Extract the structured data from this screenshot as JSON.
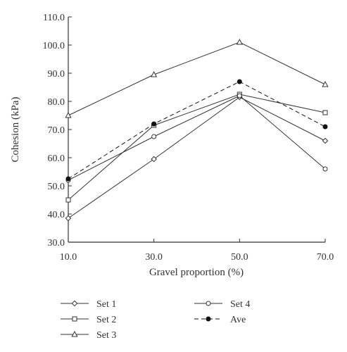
{
  "chart_data": {
    "type": "line",
    "x": [
      10.0,
      30.0,
      50.0,
      70.0
    ],
    "xlabel": "Gravel proportion (%)",
    "ylabel": "Cohesion (kPa)",
    "xlim": [
      10.0,
      70.0
    ],
    "ylim": [
      30.0,
      110.0
    ],
    "xticks": [
      "10.0",
      "30.0",
      "50.0",
      "70.0"
    ],
    "yticks": [
      "30.0",
      "40.0",
      "50.0",
      "60.0",
      "70.0",
      "80.0",
      "90.0",
      "100.0",
      "110.0"
    ],
    "grid": false,
    "legend_placement": "bottom",
    "series": [
      {
        "name": "Set 1",
        "values": [
          38.5,
          59.5,
          81.5,
          66.0
        ],
        "marker": "diamond-open",
        "dash": "solid",
        "color": "#333333"
      },
      {
        "name": "Set 2",
        "values": [
          45.0,
          71.5,
          82.5,
          76.0
        ],
        "marker": "square-open",
        "dash": "solid",
        "color": "#333333"
      },
      {
        "name": "Set 3",
        "values": [
          75.0,
          89.5,
          101.0,
          86.0
        ],
        "marker": "triangle-open",
        "dash": "solid",
        "color": "#333333"
      },
      {
        "name": "Set 4",
        "values": [
          52.0,
          67.5,
          82.0,
          56.0
        ],
        "marker": "circle-open",
        "dash": "solid",
        "color": "#333333"
      },
      {
        "name": "Ave",
        "values": [
          52.5,
          72.0,
          87.0,
          71.0
        ],
        "marker": "circle-filled",
        "dash": "dashed",
        "color": "#111111"
      }
    ]
  }
}
